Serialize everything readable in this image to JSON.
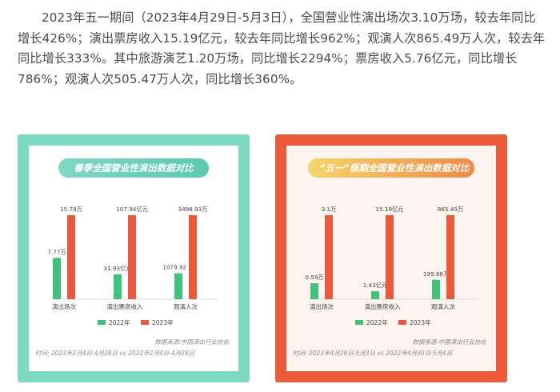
{
  "paragraph": "2023年五一期间（2023年4月29日-5月3日），全国营业性演出场次3.10万场，较去年同比增长426%；演出票房收入15.19亿元，较去年同比增长962%；观演人次865.49万人次，较去年同比增长333%。其中旅游演艺1.20万场，同比增长2294%；票房收入5.76亿元，同比增长786%；观演人次505.47万人次，同比增长360%。",
  "colors": {
    "series_2022": "#3fc37a",
    "series_2023": "#ea5a3a",
    "left_frame": "#7ed9c3",
    "right_frame": "#ec5b39"
  },
  "chart_data": [
    {
      "type": "bar",
      "title": "春季全国营业性演出数据对比",
      "categories": [
        "演出场次",
        "演出票房收入",
        "观演人次"
      ],
      "series": [
        {
          "name": "2022年",
          "values": [
            7.77,
            31.93,
            1079.92
          ],
          "labels": [
            "7.77万",
            "31.93亿元",
            "1079.92 万"
          ]
        },
        {
          "name": "2023年",
          "values": [
            15.78,
            107.94,
            3498.93
          ],
          "labels": [
            "15.78万",
            "107.94亿元",
            "3498.93万"
          ]
        }
      ],
      "legend": "bottom",
      "source": "数据来源:中国演出行业协会",
      "period": "时间: 2023年2月4日-4月28日 vs 2022年2月4日-4月28日"
    },
    {
      "type": "bar",
      "title": "“五一”假期全国营业性演出数据对比",
      "categories": [
        "演出场次",
        "演出票房收入",
        "观演人次"
      ],
      "series": [
        {
          "name": "2022年",
          "values": [
            0.59,
            1.43,
            199.88
          ],
          "labels": [
            "0.59万",
            "1.43亿元",
            "199.88万"
          ]
        },
        {
          "name": "2023年",
          "values": [
            3.1,
            15.19,
            865.49
          ],
          "labels": [
            "3.1万",
            "15.19亿元",
            "865.49万"
          ]
        }
      ],
      "legend": "bottom",
      "source": "数据来源:中国演出行业协会",
      "period": "时间: 2023年4月29日-5月3日 vs 2022年4月30日-5月4日"
    }
  ]
}
